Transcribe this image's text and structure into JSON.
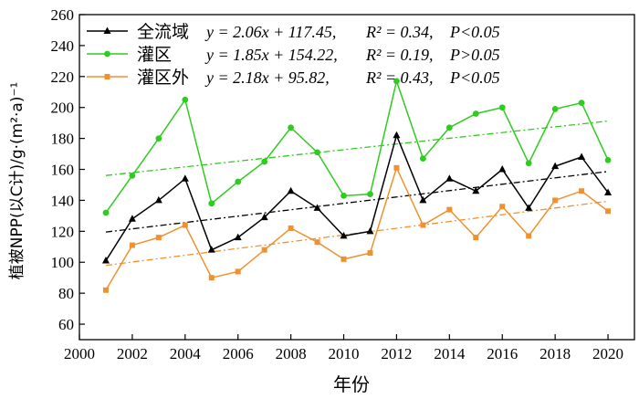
{
  "chart_data": {
    "type": "line",
    "xlabel": "年份",
    "ylabel": "植被NPP(以C计)/g·(m²·a)⁻¹",
    "xlim": [
      2000,
      2021
    ],
    "ylim": [
      50,
      260
    ],
    "x_ticks": [
      "2000",
      "2002",
      "2004",
      "2006",
      "2008",
      "2010",
      "2012",
      "2014",
      "2016",
      "2018",
      "2020"
    ],
    "y_ticks": [
      "60",
      "80",
      "100",
      "120",
      "140",
      "160",
      "180",
      "200",
      "220",
      "240",
      "260"
    ],
    "legend_position": "top-left",
    "x": [
      2001,
      2002,
      2003,
      2004,
      2005,
      2006,
      2007,
      2008,
      2009,
      2010,
      2011,
      2012,
      2013,
      2014,
      2015,
      2016,
      2017,
      2018,
      2019,
      2020
    ],
    "series": [
      {
        "name": "全流域",
        "color": "#000000",
        "marker": "triangle",
        "values": [
          101,
          128,
          140,
          154,
          108,
          116,
          129,
          146,
          135,
          117,
          120,
          182,
          140,
          154,
          146,
          160,
          135,
          162,
          168,
          145
        ],
        "trend": {
          "slope": 2.06,
          "intercept": 117.45,
          "r2": "0.34",
          "p": "P<0.05"
        },
        "legend": {
          "y": "y = 2.06x + 117.45,",
          "r2": "R² = 0.34,",
          "p": "P<0.05"
        }
      },
      {
        "name": "灌区",
        "color": "#2ecc1f",
        "marker": "circle",
        "values": [
          132,
          156,
          180,
          205,
          138,
          152,
          165,
          187,
          171,
          143,
          144,
          217,
          167,
          187,
          196,
          200,
          164,
          199,
          203,
          166
        ],
        "trend": {
          "slope": 1.85,
          "intercept": 154.22,
          "r2": "0.19",
          "p": "P>0.05"
        },
        "legend": {
          "y": "y = 1.85x + 154.22,",
          "r2": "R² = 0.19,",
          "p": "P>0.05"
        }
      },
      {
        "name": "灌区外",
        "color": "#f0912f",
        "marker": "square",
        "values": [
          82,
          111,
          116,
          124,
          90,
          94,
          108,
          122,
          113,
          102,
          106,
          161,
          124,
          134,
          116,
          136,
          117,
          140,
          146,
          133
        ],
        "trend": {
          "slope": 2.18,
          "intercept": 95.82,
          "r2": "0.43",
          "p": "P<0.05"
        },
        "legend": {
          "y": "y = 2.18x + 95.82,",
          "r2": "R² = 0.43,",
          "p": "P<0.05"
        }
      }
    ]
  }
}
